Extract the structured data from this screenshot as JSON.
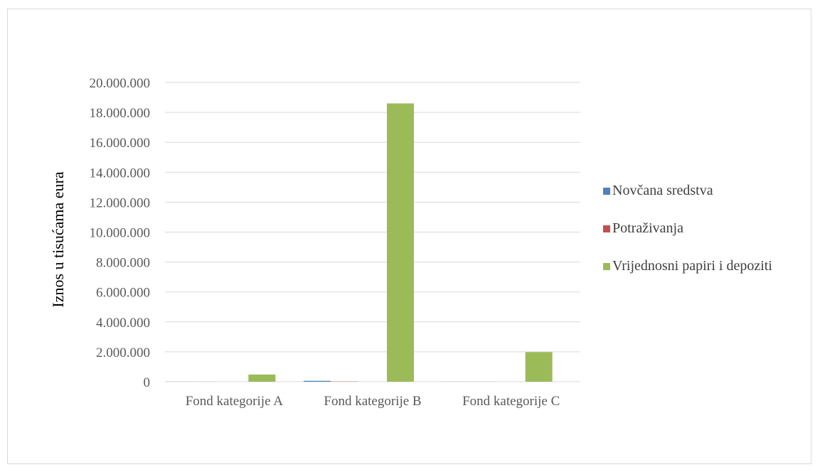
{
  "chart_data": {
    "type": "bar",
    "title": "",
    "xlabel": "",
    "ylabel": "Iznos u tisućama eura",
    "ylim": [
      0,
      20000000
    ],
    "yticks": [
      0,
      2000000,
      4000000,
      6000000,
      8000000,
      10000000,
      12000000,
      14000000,
      16000000,
      18000000,
      20000000
    ],
    "ytick_labels": [
      "0",
      "2.000.000",
      "4.000.000",
      "6.000.000",
      "8.000.000",
      "10.000.000",
      "12.000.000",
      "14.000.000",
      "16.000.000",
      "18.000.000",
      "20.000.000"
    ],
    "categories": [
      "Fond kategorije A",
      "Fond kategorije B",
      "Fond kategorije C"
    ],
    "series": [
      {
        "name": "Novčana sredstva",
        "color": "#4f81bd",
        "values": [
          5000,
          60000,
          5000
        ]
      },
      {
        "name": "Potraživanja",
        "color": "#c0504d",
        "values": [
          2000,
          15000,
          3000
        ]
      },
      {
        "name": "Vrijednosni papiri i depoziti",
        "color": "#9bbb59",
        "values": [
          480000,
          18600000,
          1980000
        ]
      }
    ],
    "grid": true,
    "legend_position": "right"
  }
}
